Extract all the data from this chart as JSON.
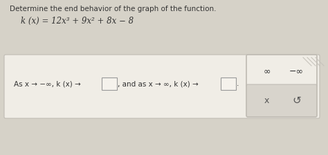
{
  "bg_color": "#d6d2c8",
  "title_text": "Determine the end behavior of the graph of the function.",
  "function_text": "k (x) = 12x³ + 9x² + 8x − 8",
  "sentence_part1": "As x → −∞, k (x) →",
  "sentence_part2": ", and as x → ∞, k (x) →",
  "sentence_end": ".",
  "answer_box_facecolor": "#f0ede6",
  "answer_box_edgecolor": "#c0bcb4",
  "input_box_facecolor": "#e8e4dc",
  "input_box_edgecolor": "#999999",
  "panel_facecolor": "#e8e4dc",
  "panel_edgecolor": "#c0bcb4",
  "panel_bottom_facecolor": "#d8d4cc",
  "option_inf": "∞",
  "option_neg_inf": "−∞",
  "option_x": "x",
  "option_redo": "↺",
  "text_color": "#333333",
  "title_fontsize": 7.5,
  "func_fontsize": 8.5,
  "body_fontsize": 7.5,
  "options_fontsize": 9
}
